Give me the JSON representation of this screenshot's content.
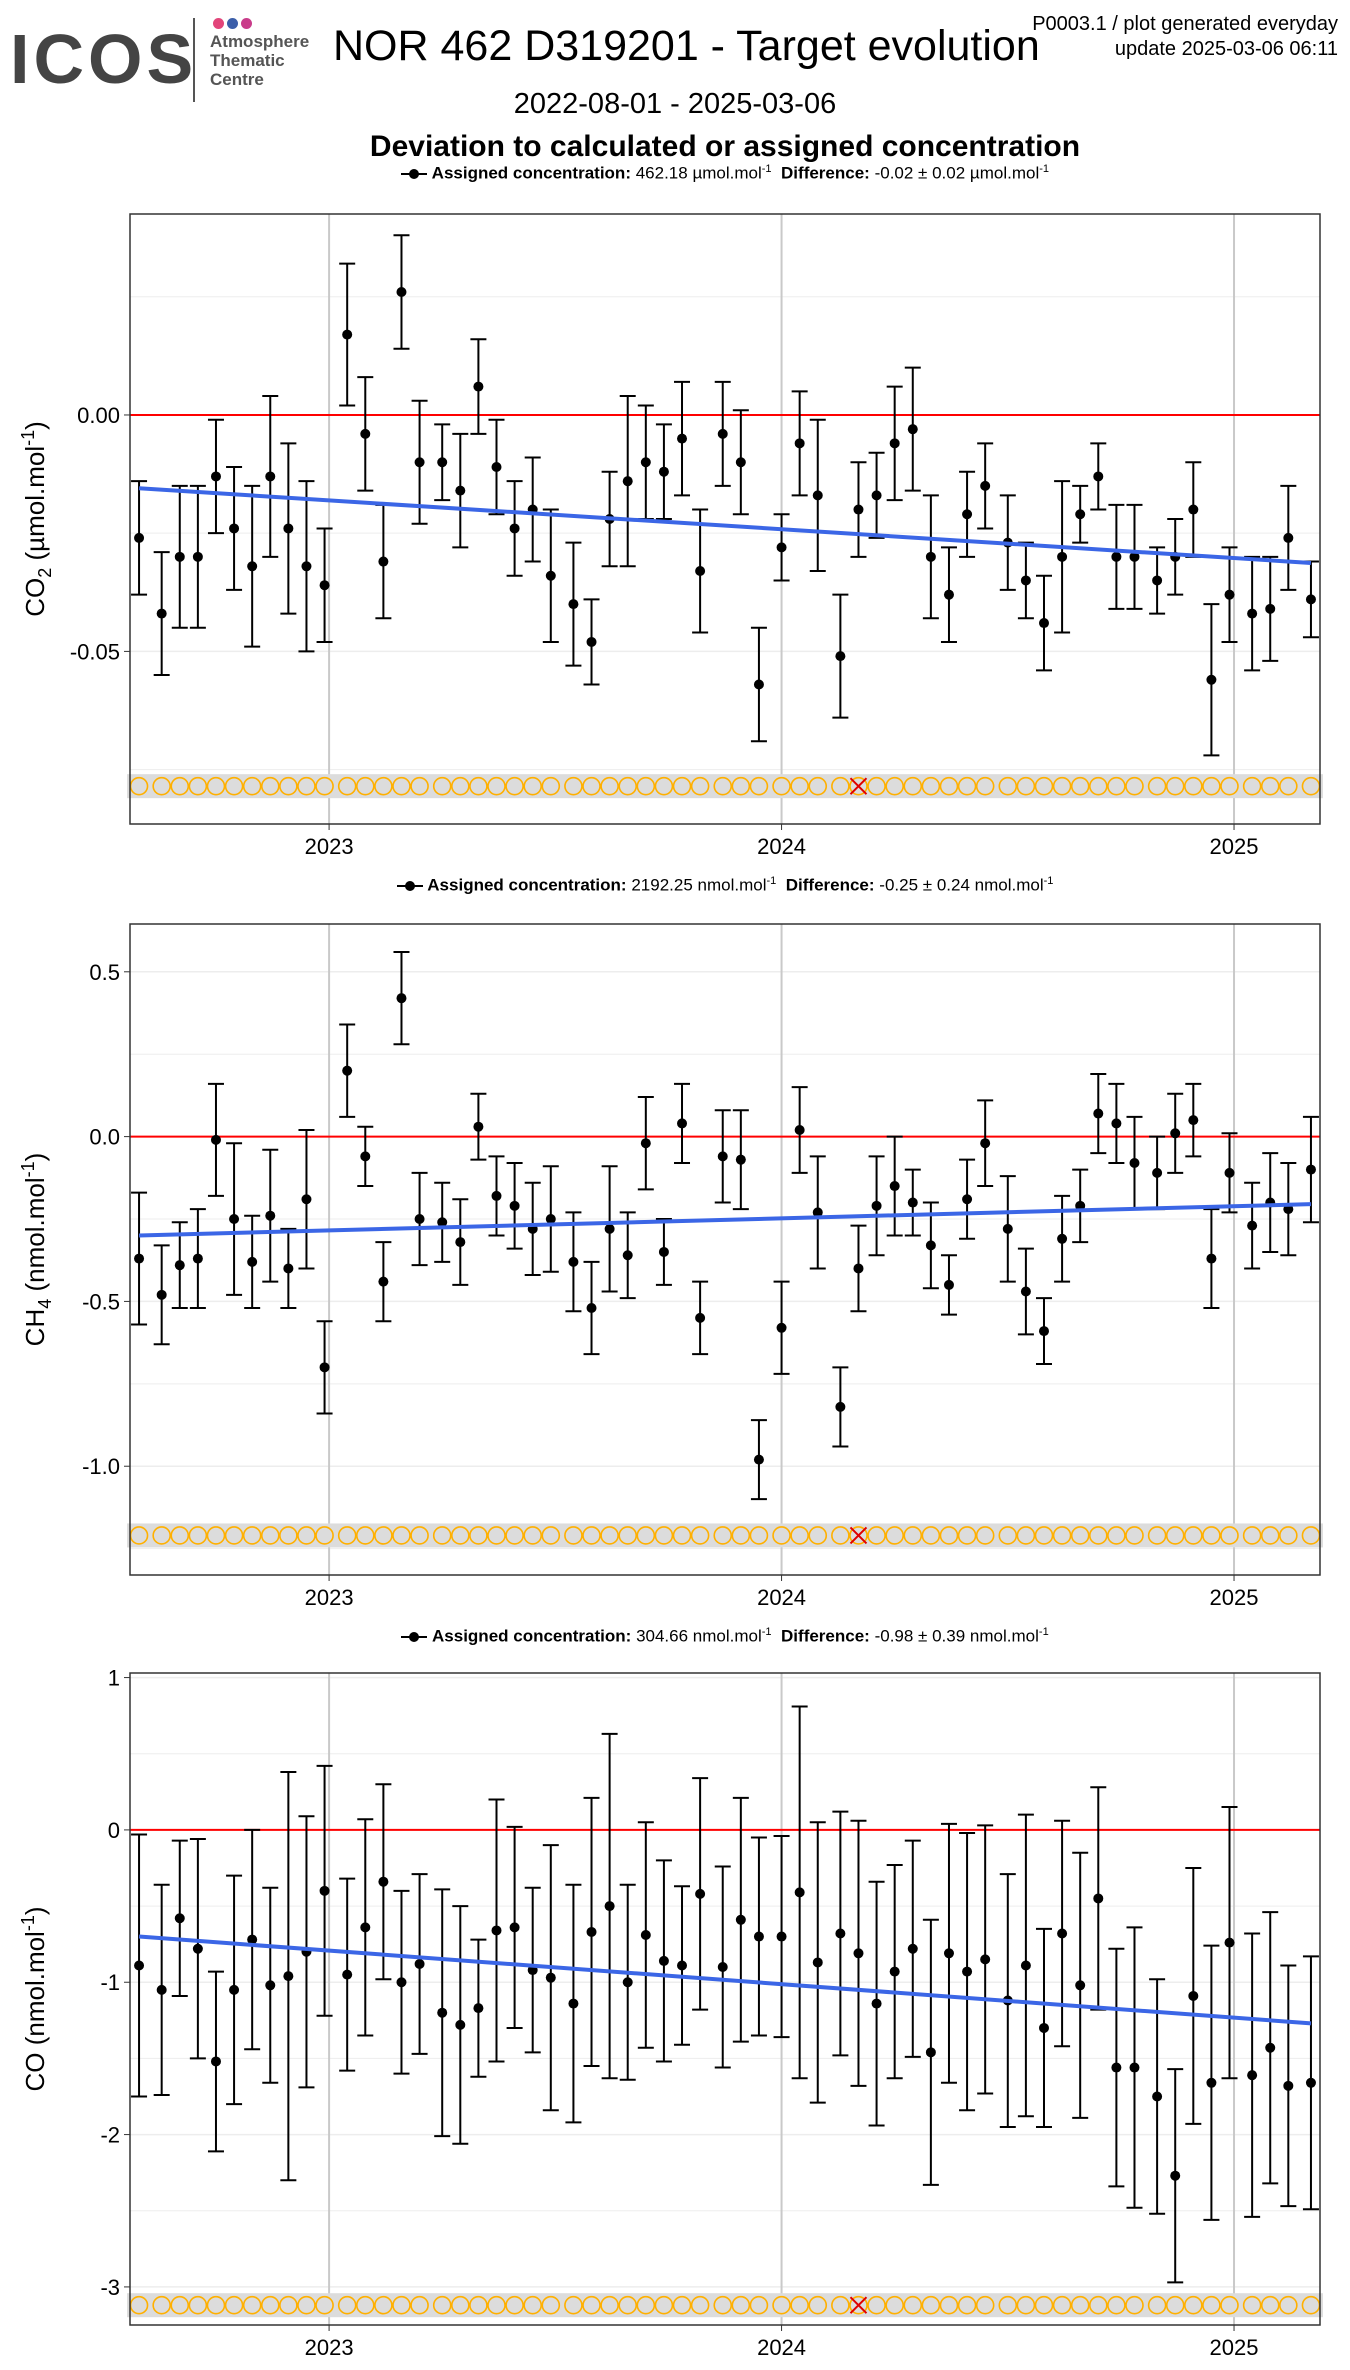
{
  "header": {
    "logo_text": "ICOS",
    "logo_subtitle": "Atmosphere\nThematic\nCentre",
    "title": "NOR 462 D319201 - Target evolution",
    "meta_line1": "P0003.1 / plot generated everyday",
    "meta_line2": "update  2025-03-06 06:11",
    "date_range": "2022-08-01 - 2025-03-06",
    "subtitle": "Deviation to calculated or assigned concentration",
    "dot_colors": [
      "#e2457a",
      "#3b5ea9",
      "#c93c8a"
    ]
  },
  "colors": {
    "points": "#000000",
    "zero_line": "#ff0000",
    "trend_line": "#3b66e6",
    "marker_circle": "#ffb000",
    "marker_band": "#dcdcdc",
    "marker_cross": "#e00000",
    "grid_major": "#c9c9c9",
    "grid_minor": "#ededed"
  },
  "captions": [
    {
      "label": "Assigned concentration:",
      "value": "462.18 µmol.mol",
      "sup": "-1",
      "diff_label": "Difference:",
      "diff": "-0.02 ± 0.02 µmol.mol",
      "diff_sup": "-1"
    },
    {
      "label": "Assigned concentration:",
      "value": "2192.25 nmol.mol",
      "sup": "-1",
      "diff_label": "Difference:",
      "diff": "-0.25 ± 0.24 nmol.mol",
      "diff_sup": "-1"
    },
    {
      "label": "Assigned concentration:",
      "value": "304.66 nmol.mol",
      "sup": "-1",
      "diff_label": "Difference:",
      "diff": "-0.98 ± 0.39 nmol.mol",
      "diff_sup": "-1"
    }
  ],
  "chart_data": [
    {
      "type": "scatter",
      "species": "CO2",
      "ylabel": "CO2 (µmol.mol-1)",
      "ylabel_main": "CO",
      "ylabel_sub": "2",
      "ylabel_rest": " (µmol.mol",
      "ylabel_sup": "-1",
      "ylabel_end": ")",
      "xlim": [
        2022.56,
        2025.19
      ],
      "ylim": [
        -0.0865,
        0.0425
      ],
      "yticks": [
        0.0,
        -0.05
      ],
      "ytick_labels": [
        "0.00",
        "-0.05"
      ],
      "xticks": [
        2023,
        2024,
        2025
      ],
      "xtick_labels": [
        "2023",
        "2024",
        "2025"
      ],
      "zero_line": 0,
      "trend": {
        "x": [
          2022.58,
          2025.17
        ],
        "y": [
          -0.0155,
          -0.0313
        ]
      },
      "marker_row_y": -0.0785,
      "marker_cross_index": 38,
      "series": [
        {
          "x": [
            2022.58,
            2022.63,
            2022.67,
            2022.71,
            2022.75,
            2022.79,
            2022.83,
            2022.87,
            2022.91,
            2022.95,
            2022.99,
            2023.04,
            2023.08,
            2023.12,
            2023.16,
            2023.2,
            2023.25,
            2023.29,
            2023.33,
            2023.37,
            2023.41,
            2023.45,
            2023.49,
            2023.54,
            2023.58,
            2023.62,
            2023.66,
            2023.7,
            2023.74,
            2023.78,
            2023.82,
            2023.87,
            2023.91,
            2023.95,
            2024.0,
            2024.04,
            2024.08,
            2024.13,
            2024.17,
            2024.21,
            2024.25,
            2024.29,
            2024.33,
            2024.37,
            2024.41,
            2024.45,
            2024.5,
            2024.54,
            2024.58,
            2024.62,
            2024.66,
            2024.7,
            2024.74,
            2024.78,
            2024.83,
            2024.87,
            2024.91,
            2024.95,
            2024.99,
            2025.04,
            2025.08,
            2025.12,
            2025.17
          ],
          "y": [
            -0.026,
            -0.042,
            -0.03,
            -0.03,
            -0.013,
            -0.024,
            -0.032,
            -0.013,
            -0.024,
            -0.032,
            -0.036,
            0.017,
            -0.004,
            -0.031,
            0.026,
            -0.01,
            -0.01,
            -0.016,
            0.006,
            -0.011,
            -0.024,
            -0.02,
            -0.034,
            -0.04,
            -0.048,
            -0.022,
            -0.014,
            -0.01,
            -0.012,
            -0.005,
            -0.033,
            -0.004,
            -0.01,
            -0.057,
            -0.028,
            -0.006,
            -0.017,
            -0.051,
            -0.02,
            -0.017,
            -0.006,
            -0.003,
            -0.03,
            -0.038,
            -0.021,
            -0.015,
            -0.027,
            -0.035,
            -0.044,
            -0.03,
            -0.021,
            -0.013,
            -0.03,
            -0.03,
            -0.035,
            -0.03,
            -0.02,
            -0.056,
            -0.038,
            -0.042,
            -0.041,
            -0.026,
            -0.039
          ],
          "err": [
            0.012,
            0.013,
            0.015,
            0.015,
            0.012,
            0.013,
            0.017,
            0.017,
            0.018,
            0.018,
            0.012,
            0.015,
            0.012,
            0.012,
            0.012,
            0.013,
            0.008,
            0.012,
            0.01,
            0.01,
            0.01,
            0.011,
            0.014,
            0.013,
            0.009,
            0.01,
            0.018,
            0.012,
            0.01,
            0.012,
            0.013,
            0.011,
            0.011,
            0.012,
            0.007,
            0.011,
            0.016,
            0.013,
            0.01,
            0.009,
            0.012,
            0.013,
            0.013,
            0.01,
            0.009,
            0.009,
            0.01,
            0.008,
            0.01,
            0.016,
            0.006,
            0.007,
            0.011,
            0.011,
            0.007,
            0.008,
            0.01,
            0.016,
            0.01,
            0.012,
            0.011,
            0.011,
            0.008
          ]
        }
      ]
    },
    {
      "type": "scatter",
      "species": "CH4",
      "ylabel": "CH4 (nmol.mol-1)",
      "ylabel_main": "CH",
      "ylabel_sub": "4",
      "ylabel_rest": " (nmol.mol",
      "ylabel_sup": "-1",
      "ylabel_end": ")",
      "xlim": [
        2022.56,
        2025.19
      ],
      "ylim": [
        -1.33,
        0.645
      ],
      "yticks": [
        0.5,
        0.0,
        -0.5,
        -1.0
      ],
      "ytick_labels": [
        "0.5",
        "0.0",
        "-0.5",
        "-1.0"
      ],
      "xticks": [
        2023,
        2024,
        2025
      ],
      "xtick_labels": [
        "2023",
        "2024",
        "2025"
      ],
      "zero_line": 0,
      "trend": {
        "x": [
          2022.58,
          2025.17
        ],
        "y": [
          -0.3,
          -0.205
        ]
      },
      "marker_row_y": -1.21,
      "marker_cross_index": 38,
      "series": [
        {
          "x": [
            2022.58,
            2022.63,
            2022.67,
            2022.71,
            2022.75,
            2022.79,
            2022.83,
            2022.87,
            2022.91,
            2022.95,
            2022.99,
            2023.04,
            2023.08,
            2023.12,
            2023.16,
            2023.2,
            2023.25,
            2023.29,
            2023.33,
            2023.37,
            2023.41,
            2023.45,
            2023.49,
            2023.54,
            2023.58,
            2023.62,
            2023.66,
            2023.7,
            2023.74,
            2023.78,
            2023.82,
            2023.87,
            2023.91,
            2023.95,
            2024.0,
            2024.04,
            2024.08,
            2024.13,
            2024.17,
            2024.21,
            2024.25,
            2024.29,
            2024.33,
            2024.37,
            2024.41,
            2024.45,
            2024.5,
            2024.54,
            2024.58,
            2024.62,
            2024.66,
            2024.7,
            2024.74,
            2024.78,
            2024.83,
            2024.87,
            2024.91,
            2024.95,
            2024.99,
            2025.04,
            2025.08,
            2025.12,
            2025.17
          ],
          "y": [
            -0.37,
            -0.48,
            -0.39,
            -0.37,
            -0.01,
            -0.25,
            -0.38,
            -0.24,
            -0.4,
            -0.19,
            -0.7,
            0.2,
            -0.06,
            -0.44,
            0.42,
            -0.25,
            -0.26,
            -0.32,
            0.03,
            -0.18,
            -0.21,
            -0.28,
            -0.25,
            -0.38,
            -0.52,
            -0.28,
            -0.36,
            -0.02,
            -0.35,
            0.04,
            -0.55,
            -0.06,
            -0.07,
            -0.98,
            -0.58,
            0.02,
            -0.23,
            -0.82,
            -0.4,
            -0.21,
            -0.15,
            -0.2,
            -0.33,
            -0.45,
            -0.19,
            -0.02,
            -0.28,
            -0.47,
            -0.59,
            -0.31,
            -0.21,
            0.07,
            0.04,
            -0.08,
            -0.11,
            0.01,
            0.05,
            -0.37,
            -0.11,
            -0.27,
            -0.2,
            -0.22,
            -0.1
          ],
          "err": [
            0.2,
            0.15,
            0.13,
            0.15,
            0.17,
            0.23,
            0.14,
            0.2,
            0.12,
            0.21,
            0.14,
            0.14,
            0.09,
            0.12,
            0.14,
            0.14,
            0.12,
            0.13,
            0.1,
            0.12,
            0.13,
            0.14,
            0.16,
            0.15,
            0.14,
            0.19,
            0.13,
            0.14,
            0.1,
            0.12,
            0.11,
            0.14,
            0.15,
            0.12,
            0.14,
            0.13,
            0.17,
            0.12,
            0.13,
            0.15,
            0.15,
            0.1,
            0.13,
            0.09,
            0.12,
            0.13,
            0.16,
            0.13,
            0.1,
            0.13,
            0.11,
            0.12,
            0.12,
            0.14,
            0.11,
            0.12,
            0.11,
            0.15,
            0.12,
            0.13,
            0.15,
            0.14,
            0.16
          ]
        }
      ]
    },
    {
      "type": "scatter",
      "species": "CO",
      "ylabel": "CO (nmol.mol-1)",
      "ylabel_main": "CO",
      "ylabel_sub": "",
      "ylabel_rest": " (nmol.mol",
      "ylabel_sup": "-1",
      "ylabel_end": ")",
      "xlim": [
        2022.56,
        2025.19
      ],
      "ylim": [
        -3.25,
        1.03
      ],
      "yticks": [
        1,
        0,
        -1,
        -2,
        -3
      ],
      "ytick_labels": [
        "1",
        "0",
        "-1",
        "-2",
        "-3"
      ],
      "xticks": [
        2023,
        2024,
        2025
      ],
      "xtick_labels": [
        "2023",
        "2024",
        "2025"
      ],
      "zero_line": 0,
      "trend": {
        "x": [
          2022.58,
          2025.17
        ],
        "y": [
          -0.7,
          -1.27
        ]
      },
      "marker_row_y": -3.12,
      "marker_cross_index": 38,
      "series": [
        {
          "x": [
            2022.58,
            2022.63,
            2022.67,
            2022.71,
            2022.75,
            2022.79,
            2022.83,
            2022.87,
            2022.91,
            2022.95,
            2022.99,
            2023.04,
            2023.08,
            2023.12,
            2023.16,
            2023.2,
            2023.25,
            2023.29,
            2023.33,
            2023.37,
            2023.41,
            2023.45,
            2023.49,
            2023.54,
            2023.58,
            2023.62,
            2023.66,
            2023.7,
            2023.74,
            2023.78,
            2023.82,
            2023.87,
            2023.91,
            2023.95,
            2024.0,
            2024.04,
            2024.08,
            2024.13,
            2024.17,
            2024.21,
            2024.25,
            2024.29,
            2024.33,
            2024.37,
            2024.41,
            2024.45,
            2024.5,
            2024.54,
            2024.58,
            2024.62,
            2024.66,
            2024.7,
            2024.74,
            2024.78,
            2024.83,
            2024.87,
            2024.91,
            2024.95,
            2024.99,
            2025.04,
            2025.08,
            2025.12,
            2025.17
          ],
          "y": [
            -0.89,
            -1.05,
            -0.58,
            -0.78,
            -1.52,
            -1.05,
            -0.72,
            -1.02,
            -0.96,
            -0.8,
            -0.4,
            -0.95,
            -0.64,
            -0.34,
            -1.0,
            -0.88,
            -1.2,
            -1.28,
            -1.17,
            -0.66,
            -0.64,
            -0.92,
            -0.97,
            -1.14,
            -0.67,
            -0.5,
            -1.0,
            -0.69,
            -0.86,
            -0.89,
            -0.42,
            -0.9,
            -0.59,
            -0.7,
            -0.7,
            -0.41,
            -0.87,
            -0.68,
            -0.81,
            -1.14,
            -0.93,
            -0.78,
            -1.46,
            -0.81,
            -0.93,
            -0.85,
            -1.12,
            -0.89,
            -1.3,
            -0.68,
            -1.02,
            -0.45,
            -1.56,
            -1.56,
            -1.75,
            -2.27,
            -1.09,
            -1.66,
            -0.74,
            -1.61,
            -1.43,
            -1.68,
            -1.66
          ],
          "err": [
            0.86,
            0.69,
            0.51,
            0.72,
            0.59,
            0.75,
            0.72,
            0.64,
            1.34,
            0.89,
            0.82,
            0.63,
            0.71,
            0.64,
            0.6,
            0.59,
            0.81,
            0.78,
            0.45,
            0.86,
            0.66,
            0.54,
            0.87,
            0.78,
            0.88,
            1.13,
            0.64,
            0.74,
            0.66,
            0.52,
            0.76,
            0.66,
            0.8,
            0.65,
            0.66,
            1.22,
            0.92,
            0.8,
            0.87,
            0.8,
            0.7,
            0.71,
            0.87,
            0.85,
            0.91,
            0.88,
            0.83,
            0.99,
            0.65,
            0.74,
            0.87,
            0.73,
            0.78,
            0.92,
            0.77,
            0.7,
            0.84,
            0.9,
            0.89,
            0.93,
            0.89,
            0.79,
            0.83
          ]
        }
      ]
    }
  ]
}
